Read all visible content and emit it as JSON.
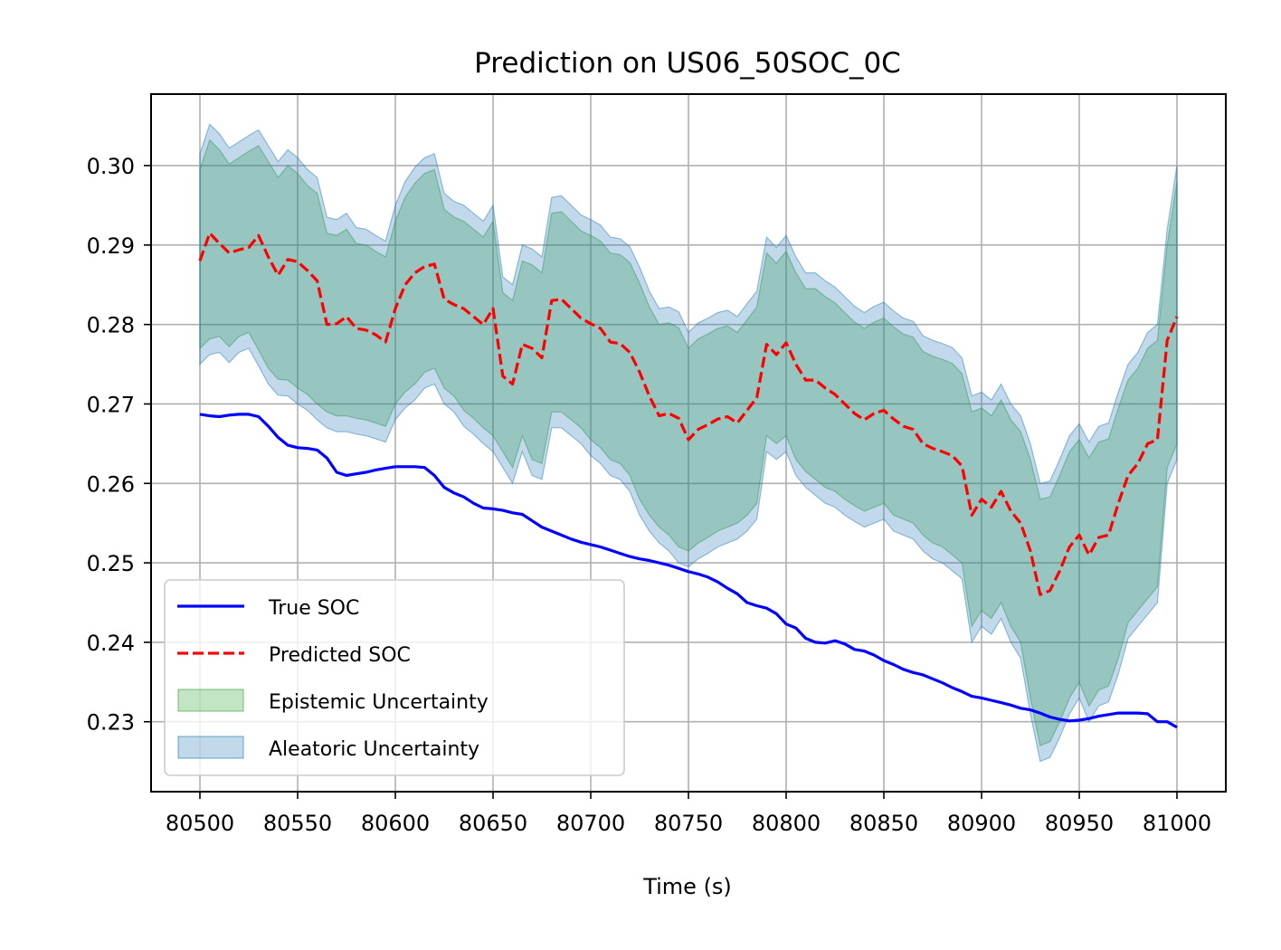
{
  "chart_data": {
    "type": "line",
    "title": "Prediction on US06_50SOC_0C",
    "xlabel": "Time (s)",
    "ylabel": "",
    "xlim": [
      80475,
      81025
    ],
    "ylim": [
      0.2212,
      0.309
    ],
    "xticks": [
      80500,
      80550,
      80600,
      80650,
      80700,
      80750,
      80800,
      80850,
      80900,
      80950,
      81000
    ],
    "xtick_labels": [
      "80500",
      "80550",
      "80600",
      "80650",
      "80700",
      "80750",
      "80800",
      "80850",
      "80900",
      "80950",
      "81000"
    ],
    "yticks": [
      0.23,
      0.24,
      0.25,
      0.26,
      0.27,
      0.28,
      0.29,
      0.3
    ],
    "ytick_labels": [
      "0.23",
      "0.24",
      "0.25",
      "0.26",
      "0.27",
      "0.28",
      "0.29",
      "0.30"
    ],
    "grid": true,
    "legend_position": "lower-left",
    "x": [
      80500,
      80505,
      80510,
      80515,
      80520,
      80525,
      80530,
      80535,
      80540,
      80545,
      80550,
      80555,
      80560,
      80565,
      80570,
      80575,
      80580,
      80585,
      80590,
      80595,
      80600,
      80605,
      80610,
      80615,
      80620,
      80625,
      80630,
      80635,
      80640,
      80645,
      80650,
      80655,
      80660,
      80665,
      80670,
      80675,
      80680,
      80685,
      80690,
      80695,
      80700,
      80705,
      80710,
      80715,
      80720,
      80725,
      80730,
      80735,
      80740,
      80745,
      80750,
      80755,
      80760,
      80765,
      80770,
      80775,
      80780,
      80785,
      80790,
      80795,
      80800,
      80805,
      80810,
      80815,
      80820,
      80825,
      80830,
      80835,
      80840,
      80845,
      80850,
      80855,
      80860,
      80865,
      80870,
      80875,
      80880,
      80885,
      80890,
      80895,
      80900,
      80905,
      80910,
      80915,
      80920,
      80925,
      80930,
      80935,
      80940,
      80945,
      80950,
      80955,
      80960,
      80965,
      80970,
      80975,
      80980,
      80985,
      80990,
      80995,
      81000
    ],
    "series": [
      {
        "name": "True SOC",
        "color": "#0000ff",
        "style": "solid",
        "values": [
          0.2687,
          0.2685,
          0.2684,
          0.2686,
          0.2687,
          0.2687,
          0.2684,
          0.2672,
          0.2658,
          0.2648,
          0.2645,
          0.2644,
          0.2642,
          0.2632,
          0.2614,
          0.261,
          0.2612,
          0.2614,
          0.2617,
          0.2619,
          0.2621,
          0.2621,
          0.2621,
          0.262,
          0.261,
          0.2595,
          0.2588,
          0.2583,
          0.2575,
          0.2569,
          0.2568,
          0.2566,
          0.2563,
          0.2561,
          0.2553,
          0.2545,
          0.254,
          0.2535,
          0.253,
          0.2526,
          0.2523,
          0.252,
          0.2516,
          0.2512,
          0.2508,
          0.2505,
          0.2503,
          0.25,
          0.2497,
          0.2493,
          0.2489,
          0.2486,
          0.2482,
          0.2476,
          0.2468,
          0.2461,
          0.245,
          0.2446,
          0.2443,
          0.2436,
          0.2423,
          0.2418,
          0.2405,
          0.24,
          0.2399,
          0.2402,
          0.2398,
          0.2391,
          0.2389,
          0.2384,
          0.2377,
          0.2372,
          0.2366,
          0.2362,
          0.2359,
          0.2354,
          0.2349,
          0.2343,
          0.2338,
          0.2332,
          0.233,
          0.2327,
          0.2324,
          0.2321,
          0.2317,
          0.2315,
          0.2311,
          0.2306,
          0.2303,
          0.2301,
          0.2302,
          0.2304,
          0.2307,
          0.2309,
          0.2311,
          0.2311,
          0.2311,
          0.231,
          0.23,
          0.23,
          0.2293
        ]
      },
      {
        "name": "Predicted SOC",
        "color": "#ff0000",
        "style": "dashed",
        "values": [
          0.288,
          0.2915,
          0.2902,
          0.289,
          0.2894,
          0.2897,
          0.2912,
          0.2885,
          0.2862,
          0.2882,
          0.2879,
          0.2868,
          0.2855,
          0.28,
          0.2801,
          0.281,
          0.2795,
          0.2793,
          0.2787,
          0.2778,
          0.282,
          0.285,
          0.2865,
          0.2873,
          0.2876,
          0.2832,
          0.2825,
          0.282,
          0.281,
          0.28,
          0.282,
          0.2735,
          0.2725,
          0.2775,
          0.277,
          0.2758,
          0.283,
          0.2832,
          0.282,
          0.2808,
          0.2801,
          0.2795,
          0.2778,
          0.2776,
          0.2765,
          0.274,
          0.271,
          0.2685,
          0.2688,
          0.2682,
          0.2655,
          0.2668,
          0.2674,
          0.2681,
          0.2684,
          0.2676,
          0.2692,
          0.2708,
          0.2775,
          0.2762,
          0.2777,
          0.275,
          0.273,
          0.273,
          0.272,
          0.2712,
          0.27,
          0.2688,
          0.268,
          0.2688,
          0.2692,
          0.2681,
          0.2672,
          0.2668,
          0.265,
          0.2644,
          0.264,
          0.2635,
          0.2622,
          0.256,
          0.258,
          0.257,
          0.259,
          0.2565,
          0.255,
          0.2515,
          0.246,
          0.2465,
          0.249,
          0.252,
          0.2535,
          0.251,
          0.2532,
          0.2535,
          0.2575,
          0.261,
          0.2625,
          0.265,
          0.2655,
          0.278,
          0.281
        ]
      }
    ],
    "bands": [
      {
        "name": "Epistemic Uncertainty",
        "color": "#2ca02c",
        "lower": [
          0.277,
          0.2782,
          0.2785,
          0.2772,
          0.2785,
          0.279,
          0.2768,
          0.2745,
          0.2731,
          0.273,
          0.272,
          0.2712,
          0.27,
          0.269,
          0.2685,
          0.2685,
          0.2682,
          0.268,
          0.2676,
          0.2672,
          0.27,
          0.2715,
          0.2725,
          0.274,
          0.2745,
          0.272,
          0.271,
          0.2692,
          0.2682,
          0.267,
          0.266,
          0.264,
          0.262,
          0.266,
          0.263,
          0.2625,
          0.269,
          0.269,
          0.268,
          0.267,
          0.2655,
          0.2645,
          0.263,
          0.2625,
          0.261,
          0.258,
          0.256,
          0.2545,
          0.2535,
          0.252,
          0.2515,
          0.2525,
          0.2532,
          0.254,
          0.2545,
          0.255,
          0.256,
          0.2575,
          0.266,
          0.265,
          0.266,
          0.263,
          0.2615,
          0.2605,
          0.2595,
          0.259,
          0.258,
          0.2572,
          0.2565,
          0.257,
          0.2575,
          0.256,
          0.2555,
          0.255,
          0.2535,
          0.2525,
          0.252,
          0.251,
          0.25,
          0.242,
          0.244,
          0.243,
          0.245,
          0.242,
          0.24,
          0.233,
          0.227,
          0.2275,
          0.23,
          0.233,
          0.235,
          0.232,
          0.234,
          0.2345,
          0.238,
          0.2425,
          0.244,
          0.2455,
          0.247,
          0.262,
          0.265
        ],
        "upper": [
          0.2995,
          0.3032,
          0.302,
          0.3002,
          0.301,
          0.3018,
          0.3025,
          0.3005,
          0.2985,
          0.3,
          0.299,
          0.2975,
          0.2965,
          0.2915,
          0.2912,
          0.292,
          0.2902,
          0.29,
          0.2892,
          0.2885,
          0.293,
          0.296,
          0.2978,
          0.299,
          0.2995,
          0.2945,
          0.2935,
          0.293,
          0.292,
          0.291,
          0.293,
          0.284,
          0.283,
          0.288,
          0.2875,
          0.2865,
          0.294,
          0.2942,
          0.293,
          0.2918,
          0.2912,
          0.2905,
          0.289,
          0.2888,
          0.2878,
          0.2852,
          0.2822,
          0.28,
          0.2802,
          0.2796,
          0.277,
          0.2782,
          0.2788,
          0.2795,
          0.2798,
          0.279,
          0.2806,
          0.2822,
          0.289,
          0.2877,
          0.2892,
          0.2865,
          0.2845,
          0.2845,
          0.2835,
          0.2827,
          0.2815,
          0.2803,
          0.2795,
          0.2803,
          0.2808,
          0.2797,
          0.2788,
          0.2784,
          0.2766,
          0.276,
          0.2756,
          0.2751,
          0.2738,
          0.269,
          0.2695,
          0.2685,
          0.2705,
          0.268,
          0.2665,
          0.263,
          0.258,
          0.2583,
          0.261,
          0.264,
          0.2655,
          0.2632,
          0.2652,
          0.2656,
          0.2695,
          0.273,
          0.2745,
          0.277,
          0.278,
          0.29,
          0.298
        ]
      },
      {
        "name": "Aleatoric Uncertainty",
        "color": "#1f77b4",
        "lower": [
          0.275,
          0.2762,
          0.2765,
          0.2752,
          0.2765,
          0.277,
          0.2748,
          0.2725,
          0.2711,
          0.271,
          0.27,
          0.2692,
          0.268,
          0.267,
          0.2665,
          0.2665,
          0.2662,
          0.266,
          0.2656,
          0.2652,
          0.268,
          0.2695,
          0.2705,
          0.272,
          0.2725,
          0.27,
          0.269,
          0.2672,
          0.2662,
          0.265,
          0.264,
          0.262,
          0.26,
          0.264,
          0.261,
          0.2605,
          0.267,
          0.267,
          0.266,
          0.265,
          0.2635,
          0.2625,
          0.261,
          0.2605,
          0.259,
          0.256,
          0.254,
          0.2525,
          0.2515,
          0.25,
          0.2495,
          0.2505,
          0.2512,
          0.252,
          0.2525,
          0.253,
          0.254,
          0.2555,
          0.264,
          0.263,
          0.264,
          0.261,
          0.2595,
          0.2585,
          0.2575,
          0.257,
          0.256,
          0.2552,
          0.2545,
          0.255,
          0.2555,
          0.254,
          0.2535,
          0.253,
          0.2515,
          0.2505,
          0.25,
          0.249,
          0.248,
          0.24,
          0.242,
          0.241,
          0.243,
          0.24,
          0.238,
          0.231,
          0.225,
          0.2255,
          0.228,
          0.231,
          0.233,
          0.23,
          0.232,
          0.2325,
          0.236,
          0.2405,
          0.242,
          0.2435,
          0.245,
          0.26,
          0.263
        ],
        "upper": [
          0.3015,
          0.3052,
          0.304,
          0.3022,
          0.303,
          0.3038,
          0.3045,
          0.3025,
          0.3005,
          0.302,
          0.301,
          0.2995,
          0.2985,
          0.2935,
          0.2932,
          0.294,
          0.2922,
          0.292,
          0.2912,
          0.2905,
          0.295,
          0.298,
          0.2998,
          0.301,
          0.3015,
          0.2965,
          0.2955,
          0.295,
          0.294,
          0.293,
          0.295,
          0.286,
          0.285,
          0.29,
          0.2895,
          0.2885,
          0.296,
          0.2962,
          0.295,
          0.2938,
          0.2932,
          0.2925,
          0.291,
          0.2908,
          0.2898,
          0.2872,
          0.2842,
          0.282,
          0.2822,
          0.2816,
          0.279,
          0.2802,
          0.2808,
          0.2815,
          0.2818,
          0.281,
          0.2826,
          0.2842,
          0.291,
          0.2897,
          0.2912,
          0.2885,
          0.2865,
          0.2865,
          0.2855,
          0.2847,
          0.2835,
          0.2823,
          0.2815,
          0.2823,
          0.2828,
          0.2817,
          0.2808,
          0.2804,
          0.2786,
          0.278,
          0.2776,
          0.2771,
          0.2758,
          0.271,
          0.2715,
          0.2705,
          0.2725,
          0.27,
          0.2685,
          0.265,
          0.26,
          0.2603,
          0.263,
          0.266,
          0.2675,
          0.2652,
          0.2672,
          0.2676,
          0.2715,
          0.275,
          0.2765,
          0.279,
          0.28,
          0.292,
          0.3
        ]
      }
    ],
    "legend": [
      "True SOC",
      "Predicted SOC",
      "Epistemic Uncertainty",
      "Aleatoric Uncertainty"
    ]
  }
}
